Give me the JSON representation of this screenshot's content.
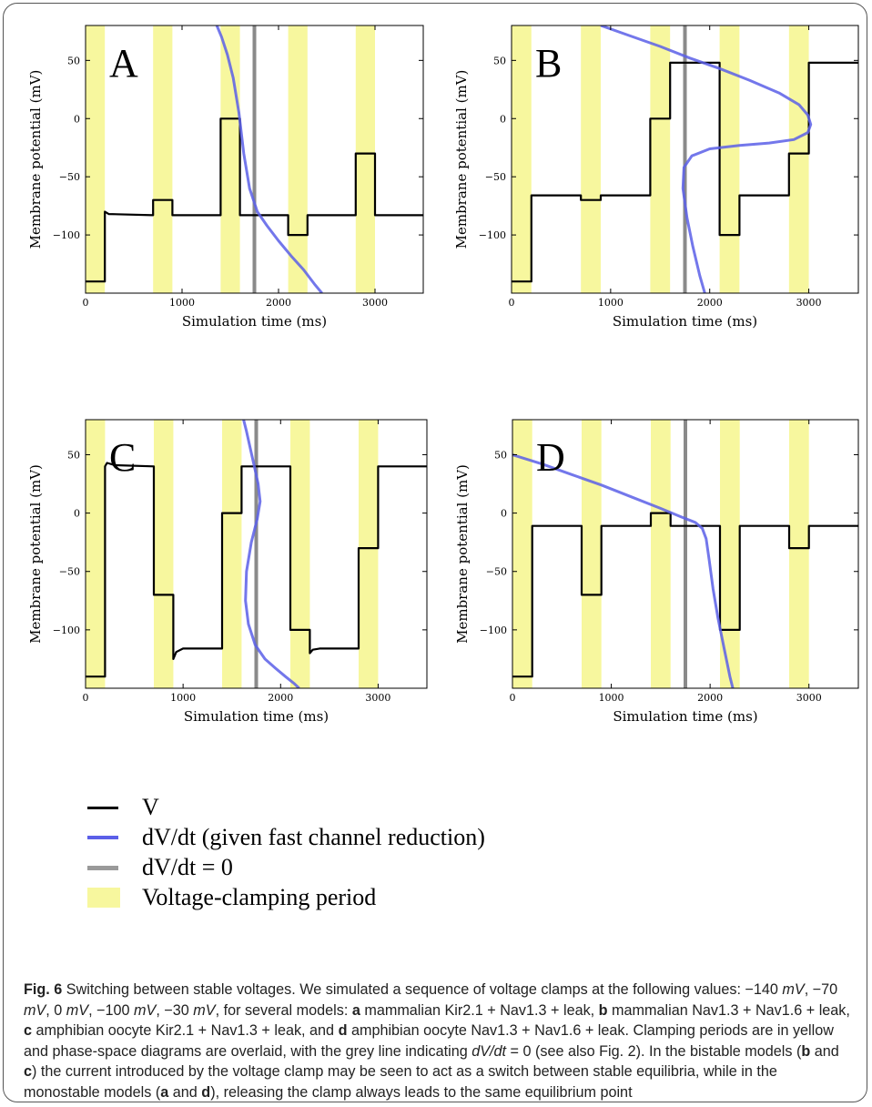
{
  "chart_data": [
    {
      "type": "line",
      "panel_label": "A",
      "xlabel": "Simulation time (ms)",
      "ylabel": "Membrane potential (mV)",
      "xlim": [
        0,
        3500
      ],
      "ylim": [
        -150,
        80
      ],
      "xticks": [
        0,
        1000,
        2000,
        3000
      ],
      "yticks": [
        50,
        0,
        -50,
        -100
      ],
      "clamp_periods": [
        [
          0,
          200
        ],
        [
          700,
          900
        ],
        [
          1400,
          1600
        ],
        [
          2100,
          2300
        ],
        [
          2800,
          3000
        ]
      ],
      "dvdt_zero_x": 1750,
      "series": [
        {
          "name": "V",
          "x": [
            0,
            200,
            200,
            240,
            700,
            700,
            900,
            900,
            1400,
            1400,
            1600,
            1600,
            2100,
            2100,
            2300,
            2300,
            2800,
            2800,
            3000,
            3000,
            3500
          ],
          "y": [
            -140,
            -140,
            -80,
            -82,
            -83,
            -70,
            -70,
            -83,
            -83,
            0,
            0,
            -83,
            -83,
            -100,
            -100,
            -83,
            -83,
            -30,
            -30,
            -83,
            -83
          ]
        },
        {
          "name": "dV/dt (given fast channel reduction)",
          "x": [
            1360,
            1410,
            1470,
            1530,
            1590,
            1640,
            1700,
            1780,
            1880,
            2000,
            2130,
            2260,
            2380,
            2450
          ],
          "y": [
            80,
            70,
            55,
            35,
            5,
            -30,
            -60,
            -80,
            -92,
            -105,
            -118,
            -130,
            -143,
            -150
          ]
        }
      ]
    },
    {
      "type": "line",
      "panel_label": "B",
      "xlabel": "Simulation time (ms)",
      "ylabel": "Membrane potential (mV)",
      "xlim": [
        0,
        3500
      ],
      "ylim": [
        -150,
        80
      ],
      "xticks": [
        0,
        1000,
        2000,
        3000
      ],
      "yticks": [
        50,
        0,
        -50,
        -100
      ],
      "clamp_periods": [
        [
          0,
          200
        ],
        [
          700,
          900
        ],
        [
          1400,
          1600
        ],
        [
          2100,
          2300
        ],
        [
          2800,
          3000
        ]
      ],
      "dvdt_zero_x": 1750,
      "series": [
        {
          "name": "V",
          "x": [
            0,
            200,
            200,
            700,
            700,
            900,
            900,
            1400,
            1400,
            1600,
            1600,
            2100,
            2100,
            2300,
            2300,
            2800,
            2800,
            3000,
            3000,
            3500
          ],
          "y": [
            -140,
            -140,
            -66,
            -66,
            -70,
            -70,
            -66,
            -66,
            0,
            0,
            48,
            48,
            -100,
            -100,
            -66,
            -66,
            -30,
            -30,
            48,
            48
          ]
        },
        {
          "name": "dV/dt (given fast channel reduction)",
          "x": [
            900,
            1200,
            1500,
            1800,
            2100,
            2400,
            2700,
            2900,
            2990,
            3020,
            2990,
            2850,
            2600,
            2300,
            2000,
            1820,
            1740,
            1730,
            1770,
            1830,
            1900,
            1950
          ],
          "y": [
            80,
            71,
            62,
            52,
            43,
            33,
            22,
            12,
            3,
            -5,
            -12,
            -18,
            -21,
            -23,
            -26,
            -32,
            -42,
            -60,
            -85,
            -110,
            -135,
            -150
          ]
        }
      ]
    },
    {
      "type": "line",
      "panel_label": "C",
      "xlabel": "Simulation time (ms)",
      "ylabel": "Membrane potential (mV)",
      "xlim": [
        0,
        3500
      ],
      "ylim": [
        -150,
        80
      ],
      "xticks": [
        0,
        1000,
        2000,
        3000
      ],
      "yticks": [
        50,
        0,
        -50,
        -100
      ],
      "clamp_periods": [
        [
          0,
          200
        ],
        [
          700,
          900
        ],
        [
          1400,
          1600
        ],
        [
          2100,
          2300
        ],
        [
          2800,
          3000
        ]
      ],
      "dvdt_zero_x": 1750,
      "series": [
        {
          "name": "V",
          "x": [
            0,
            200,
            200,
            220,
            300,
            700,
            700,
            900,
            900,
            930,
            1000,
            1400,
            1400,
            1600,
            1600,
            2100,
            2100,
            2300,
            2300,
            2330,
            2400,
            2800,
            2800,
            3000,
            3000,
            3500
          ],
          "y": [
            -140,
            -140,
            40,
            43,
            41,
            40,
            -70,
            -70,
            -125,
            -119,
            -116,
            -116,
            0,
            0,
            40,
            40,
            -100,
            -100,
            -120,
            -117,
            -116,
            -116,
            -30,
            -30,
            40,
            40
          ]
        },
        {
          "name": "dV/dt (given fast channel reduction)",
          "x": [
            1620,
            1650,
            1690,
            1730,
            1770,
            1790,
            1760,
            1700,
            1650,
            1640,
            1670,
            1740,
            1840,
            1950,
            2050,
            2140,
            2190
          ],
          "y": [
            80,
            70,
            55,
            40,
            25,
            10,
            -5,
            -25,
            -50,
            -75,
            -95,
            -113,
            -125,
            -133,
            -140,
            -146,
            -150
          ]
        }
      ]
    },
    {
      "type": "line",
      "panel_label": "D",
      "xlabel": "Simulation time (ms)",
      "ylabel": "Membrane potential (mV)",
      "xlim": [
        0,
        3500
      ],
      "ylim": [
        -150,
        80
      ],
      "xticks": [
        0,
        1000,
        2000,
        3000
      ],
      "yticks": [
        50,
        0,
        -50,
        -100
      ],
      "clamp_periods": [
        [
          0,
          200
        ],
        [
          700,
          900
        ],
        [
          1400,
          1600
        ],
        [
          2100,
          2300
        ],
        [
          2800,
          3000
        ]
      ],
      "dvdt_zero_x": 1750,
      "series": [
        {
          "name": "V",
          "x": [
            0,
            200,
            200,
            700,
            700,
            900,
            900,
            1400,
            1400,
            1600,
            1600,
            2100,
            2100,
            2300,
            2300,
            2800,
            2800,
            3000,
            3000,
            3500
          ],
          "y": [
            -140,
            -140,
            -11,
            -11,
            -70,
            -70,
            -11,
            -11,
            0,
            0,
            -11,
            -11,
            -100,
            -100,
            -11,
            -11,
            -30,
            -30,
            -11,
            -11
          ]
        },
        {
          "name": "dV/dt (given fast channel reduction)",
          "x": [
            0,
            300,
            600,
            900,
            1200,
            1500,
            1700,
            1850,
            1920,
            1960,
            1990,
            2030,
            2080,
            2140,
            2200,
            2230
          ],
          "y": [
            50,
            42,
            33,
            24,
            14,
            4,
            -3,
            -8,
            -13,
            -22,
            -40,
            -65,
            -90,
            -115,
            -140,
            -150
          ]
        }
      ]
    }
  ],
  "legend": {
    "items": [
      {
        "label": "V",
        "color": "#000000",
        "kind": "line"
      },
      {
        "label": "dV/dt (given fast channel reduction)",
        "color": "#5b5fe8",
        "kind": "line"
      },
      {
        "label": "dV/dt = 0",
        "color": "#9a9a9a",
        "kind": "line"
      },
      {
        "label": "Voltage-clamping period",
        "color": "#f7f79e",
        "kind": "patch"
      }
    ]
  },
  "caption": {
    "fig_label": "Fig. 6",
    "title": "Switching between stable voltages.",
    "text_intro": "We simulated a sequence of voltage clamps at the following values: −140 ",
    "text_mv": "mV",
    "values": [
      "−70 ",
      "0 ",
      "−100 ",
      "−30 "
    ],
    "text_models": ", for several models: ",
    "letters": [
      "a",
      "b",
      "c",
      "d"
    ],
    "models": [
      " mammalian Kir2.1 + Nav1.3 + leak, ",
      " mammalian Nav1.3 + Nav1.6 + leak, ",
      " amphibian oocyte Kir2.1 + Nav1.3 + leak, and ",
      " amphibian oocyte Nav1.3 + Nav1.6 + leak. "
    ],
    "text_clamp": "Clamping periods are in yellow and phase-space diagrams are overlaid, with the grey line indicating ",
    "dvdt_eq": "dV/dt",
    "text_see": " = 0 (see also Fig. 2). In the bistable models (",
    "and": " and ",
    "text_bistable": ") the current introduced by the voltage clamp may be seen to act as a switch between stable equilibria, while in the monostable models (",
    "text_end": "), releasing the clamp always leads to the same equilibrium point"
  },
  "colors": {
    "clamp_fill": "#f7f79e",
    "v_line": "#000000",
    "dvdt_line": "#5b5fe8",
    "zero_line": "#8a8a8a"
  }
}
